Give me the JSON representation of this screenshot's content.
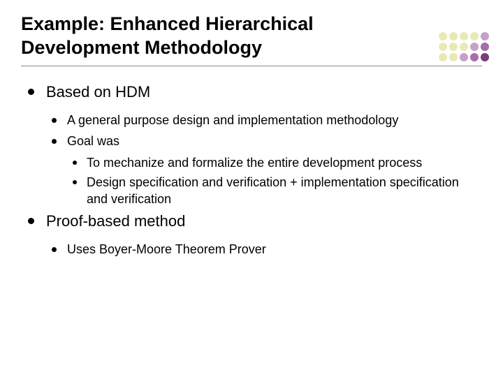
{
  "title": "Example:  Enhanced Hierarchical Development Methodology",
  "decor": {
    "dot_colors": [
      "#e9e9b5",
      "#e9e9b5",
      "#e9e9b5",
      "#e9e9b5",
      "#c7a0c7",
      "#e9e9b5",
      "#e9e9b5",
      "#e9e9b5",
      "#c7a0c7",
      "#a86fa8",
      "#e9e9b5",
      "#e9e9b5",
      "#c7a0c7",
      "#a86fa8",
      "#7a3d7a"
    ]
  },
  "outline": {
    "items": [
      {
        "text": "Based on HDM",
        "children": [
          {
            "text": "A general purpose design and implementation methodology"
          },
          {
            "text": "Goal was",
            "children": [
              {
                "text": "To mechanize and formalize the entire development process"
              },
              {
                "text": "Design specification and verification + implementation specification and verification"
              }
            ]
          }
        ]
      },
      {
        "text": "Proof-based method",
        "children": [
          {
            "text": "Uses Boyer-Moore Theorem Prover"
          }
        ]
      }
    ]
  },
  "style": {
    "title_fontsize": 27,
    "lvl1_fontsize": 22,
    "lvl2_fontsize": 18,
    "lvl3_fontsize": 18,
    "bullet_color": "#000000",
    "text_color": "#000000",
    "background_color": "#ffffff",
    "divider_color": "#888888"
  }
}
